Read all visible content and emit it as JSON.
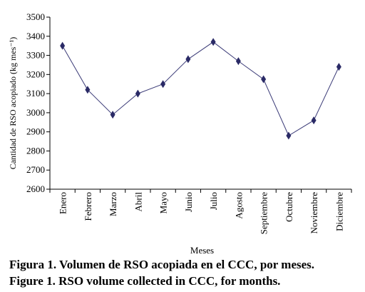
{
  "chart_data": {
    "type": "line",
    "categories": [
      "Enero",
      "Febrero",
      "Marzo",
      "Abril",
      "Mayo",
      "Junio",
      "Julio",
      "Agosto",
      "Septiembre",
      "Octubre",
      "Noviembre",
      "Diciembre"
    ],
    "values": [
      3350,
      3120,
      2990,
      3100,
      3150,
      3280,
      3370,
      3270,
      3175,
      2880,
      2960,
      3240
    ],
    "xlabel": "Meses",
    "ylabel": "Cantidad de RSO acopiado (kg mes⁻¹)",
    "ylim": [
      2600,
      3500
    ],
    "yticks": [
      2600,
      2700,
      2800,
      2900,
      3000,
      3100,
      3200,
      3300,
      3400,
      3500
    ],
    "grid": false,
    "line_color": "#3c3c78",
    "marker_color": "#2a2a66",
    "marker": "diamond"
  },
  "captions": {
    "spanish": "Figura 1. Volumen de RSO acopiada en el CCC, por meses.",
    "english": "Figure 1. RSO volume collected in CCC, for months."
  }
}
